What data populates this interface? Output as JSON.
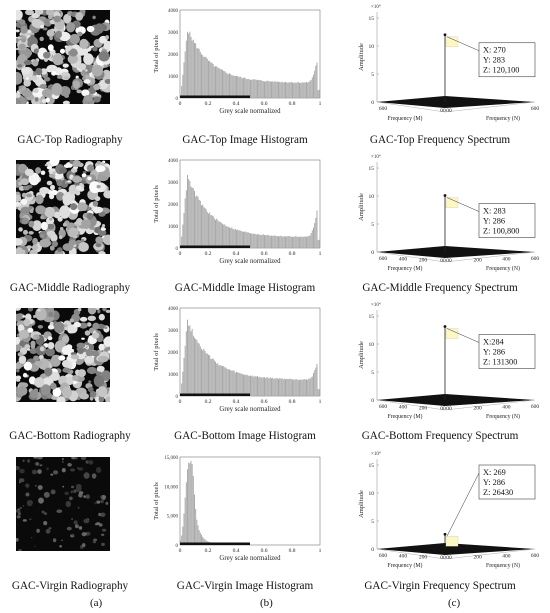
{
  "rows": [
    {
      "id": "top",
      "radiography_caption": "GAC-Top Radiography",
      "histogram_caption": "GAC-Top Image Histogram",
      "spectrum_caption": "GAC-Top Frequency Spectrum",
      "radiography_brightness": 0.85,
      "histogram": {
        "ylabel": "Total of pixels",
        "xlabel": "Grey scale normalized",
        "yticks": [
          "0",
          "1000",
          "2000",
          "3000",
          "4000"
        ],
        "xticks": [
          "0",
          "0.2",
          "0.4",
          "0.6",
          "0.8",
          "1"
        ],
        "ymax": 4000,
        "peak": 3200,
        "tail": 700,
        "end_spike": 1850
      },
      "spectrum": {
        "exp_label": "×10⁴",
        "zlabel": "Amplitude",
        "zticks": [
          "0",
          "5",
          "10",
          "15"
        ],
        "xaxis_label": "Frequency (M)",
        "yaxis_label": "Frequency (N)",
        "x_ticks": [
          "600",
          "00"
        ],
        "y_ticks": [
          "00",
          "600"
        ],
        "peak_z": 12.01,
        "datatip": {
          "x": "X: 270",
          "y": "Y: 283",
          "z": "Z: 120,100"
        }
      }
    },
    {
      "id": "middle",
      "radiography_caption": "GAC-Middle Radiography",
      "histogram_caption": "GAC-Middle Image Histogram",
      "spectrum_caption": "GAC-Middle Frequency Spectrum",
      "radiography_brightness": 0.78,
      "histogram": {
        "ylabel": "Total of pixels",
        "xlabel": "Grey scale normalized",
        "yticks": [
          "0",
          "1000",
          "2000",
          "3000",
          "4000"
        ],
        "xticks": [
          "0",
          "0.2",
          "0.4",
          "0.6",
          "0.8",
          "1"
        ],
        "ymax": 4000,
        "peak": 3300,
        "tail": 500,
        "end_spike": 1900
      },
      "spectrum": {
        "exp_label": "×10⁴",
        "zlabel": "Amplitude",
        "zticks": [
          "0",
          "5",
          "10",
          "15"
        ],
        "xaxis_label": "Frequency (M)",
        "yaxis_label": "Frequency (N)",
        "x_ticks": [
          "600",
          "400",
          "200",
          "00"
        ],
        "y_ticks": [
          "00",
          "200",
          "400",
          "600"
        ],
        "peak_z": 10.08,
        "datatip": {
          "x": "X: 283",
          "y": "Y: 286",
          "z": "Z: 100,800"
        }
      }
    },
    {
      "id": "bottom",
      "radiography_caption": "GAC-Bottom Radiography",
      "histogram_caption": "GAC-Bottom Image Histogram",
      "spectrum_caption": "GAC-Bottom Frequency Spectrum",
      "radiography_brightness": 0.8,
      "histogram": {
        "ylabel": "Total of pixels",
        "xlabel": "Grey scale normalized",
        "yticks": [
          "0",
          "1000",
          "2000",
          "3000",
          "4000"
        ],
        "xticks": [
          "0",
          "0.2",
          "0.4",
          "0.6",
          "0.8",
          "1"
        ],
        "ymax": 4000,
        "peak": 3500,
        "tail": 750,
        "end_spike": 1600
      },
      "spectrum": {
        "exp_label": "×10⁴",
        "zlabel": "Amplitude",
        "zticks": [
          "0",
          "5",
          "10",
          "15"
        ],
        "xaxis_label": "Frequency (M)",
        "yaxis_label": "Frequency (N)",
        "x_ticks": [
          "600",
          "400",
          "200",
          "00"
        ],
        "y_ticks": [
          "00",
          "200",
          "400",
          "600"
        ],
        "peak_z": 13.13,
        "datatip": {
          "x": "X:284",
          "y": "Y: 286",
          "z": "Z: 131300"
        }
      }
    },
    {
      "id": "virgin",
      "radiography_caption": "GAC-Virgin Radiography",
      "histogram_caption": "GAC-Virgin Image Histogram",
      "spectrum_caption": "GAC-Virgin Frequency Spectrum",
      "radiography_brightness": 0.18,
      "histogram": {
        "ylabel": "Total of pixels",
        "xlabel": "Grey scale normalized",
        "yticks": [
          "0",
          "5,000",
          "10,000",
          "15,000"
        ],
        "xticks": [
          "0",
          "0.2",
          "0.4",
          "0.6",
          "0.8",
          "1"
        ],
        "ymax": 15000,
        "peak": 14200,
        "tail": 20,
        "end_spike": 20
      },
      "spectrum": {
        "exp_label": "×10⁴",
        "zlabel": "Amplitude",
        "zticks": [
          "0",
          "5",
          "10",
          "15"
        ],
        "xaxis_label": "Frequency (M)",
        "yaxis_label": "Frequency (N)",
        "x_ticks": [
          "600",
          "400",
          "200",
          "00"
        ],
        "y_ticks": [
          "00",
          "200",
          "400",
          "600"
        ],
        "peak_z": 2.64,
        "datatip": {
          "x": "X: 269",
          "y": "Y: 286",
          "z": "Z: 26430"
        }
      }
    }
  ],
  "panel_letters": [
    "(a)",
    "(b)",
    "(c)"
  ]
}
